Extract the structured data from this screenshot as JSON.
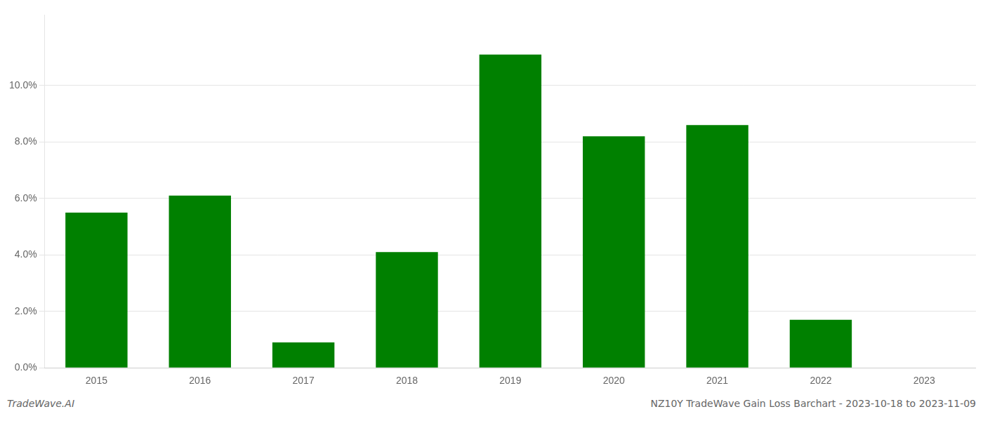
{
  "chart_data": {
    "type": "bar",
    "categories": [
      "2015",
      "2016",
      "2017",
      "2018",
      "2019",
      "2020",
      "2021",
      "2022",
      "2023"
    ],
    "values": [
      0.055,
      0.061,
      0.009,
      0.041,
      0.111,
      0.082,
      0.086,
      0.017,
      0.0
    ],
    "color": "#008000",
    "ylim": [
      0,
      0.125
    ],
    "yticks": [
      {
        "value": 0.0,
        "label": "0.0%"
      },
      {
        "value": 0.02,
        "label": "2.0%"
      },
      {
        "value": 0.04,
        "label": "4.0%"
      },
      {
        "value": 0.06,
        "label": "6.0%"
      },
      {
        "value": 0.08,
        "label": "8.0%"
      },
      {
        "value": 0.1,
        "label": "10.0%"
      }
    ],
    "grid": true,
    "annotations": [
      "TradeWave.AI",
      "NZ10Y TradeWave Gain Loss Barchart - 2023-10-18 to 2023-11-09"
    ]
  }
}
